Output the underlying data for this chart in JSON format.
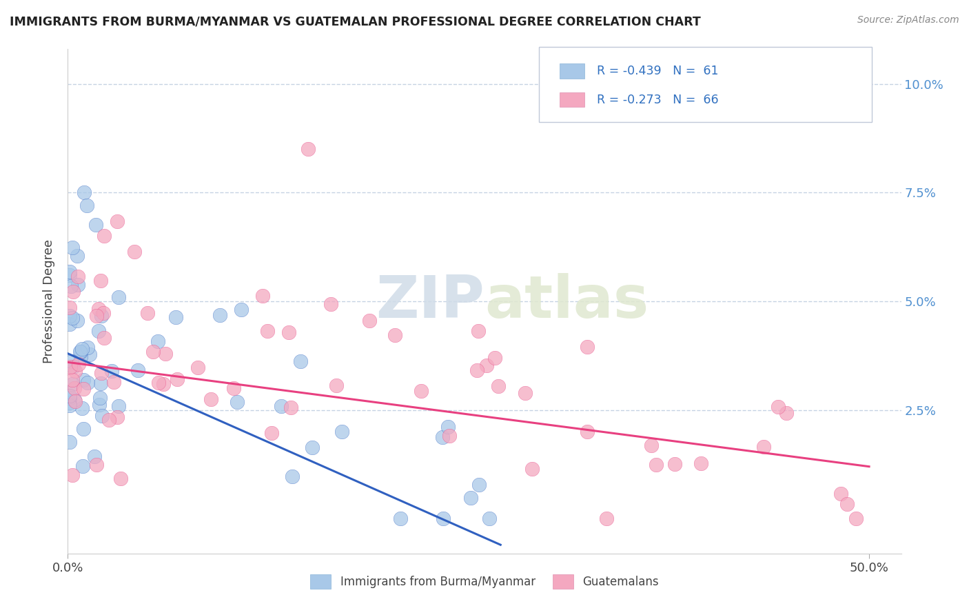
{
  "title": "IMMIGRANTS FROM BURMA/MYANMAR VS GUATEMALAN PROFESSIONAL DEGREE CORRELATION CHART",
  "source_text": "Source: ZipAtlas.com",
  "ylabel": "Professional Degree",
  "color_blue": "#a8c8e8",
  "color_pink": "#f4a8c0",
  "line_color_blue": "#3060c0",
  "line_color_pink": "#e84080",
  "watermark_zip": "ZIP",
  "watermark_atlas": "atlas",
  "background_color": "#ffffff",
  "grid_color": "#c0cfe0",
  "xlim_min": 0.0,
  "xlim_max": 0.52,
  "ylim_min": -0.008,
  "ylim_max": 0.108,
  "ytick_vals": [
    0.0,
    0.025,
    0.05,
    0.075,
    0.1
  ],
  "ytick_labels_right": [
    "",
    "2.5%",
    "5.0%",
    "7.5%",
    "10.0%"
  ],
  "xtick_vals": [
    0.0,
    0.5
  ],
  "xtick_labels": [
    "0.0%",
    "50.0%"
  ],
  "legend_r1_text": "R = -0.439   N =  61",
  "legend_r2_text": "R = -0.273   N =  66",
  "blue_line_x0": 0.0,
  "blue_line_y0": 0.038,
  "blue_line_x1": 0.27,
  "blue_line_y1": -0.006,
  "pink_line_x0": 0.0,
  "pink_line_y0": 0.036,
  "pink_line_x1": 0.5,
  "pink_line_y1": 0.012
}
